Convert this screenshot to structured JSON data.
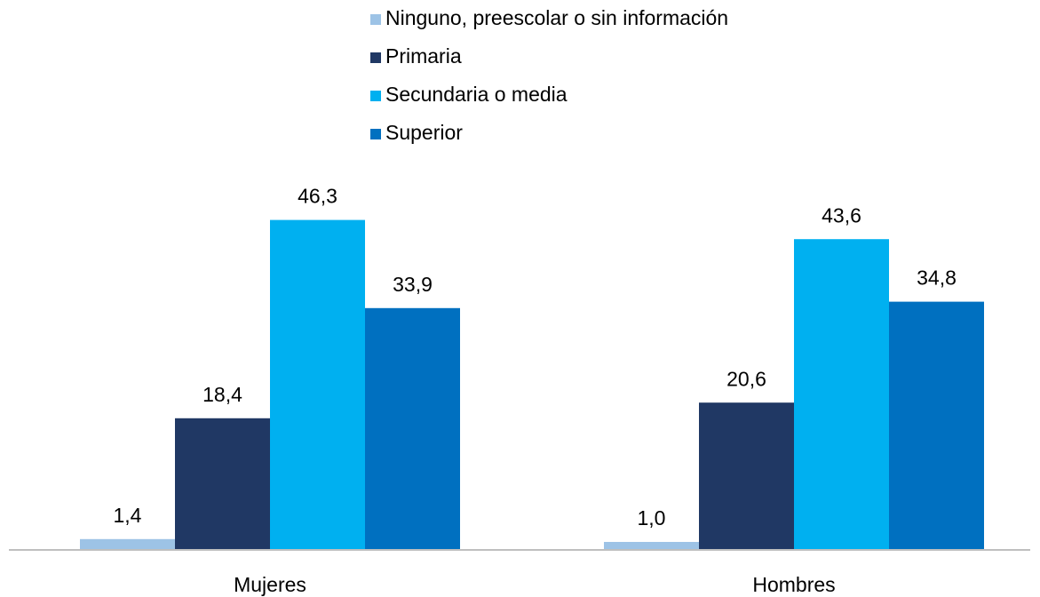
{
  "chart_data": {
    "type": "bar",
    "categories": [
      "Mujeres",
      "Hombres"
    ],
    "series": [
      {
        "name": "Ninguno, preescolar o sin información",
        "color": "#9dc3e6",
        "values": [
          1.4,
          1.0
        ],
        "value_labels": [
          "1,4",
          "1,0"
        ]
      },
      {
        "name": "Primaria",
        "color": "#203864",
        "values": [
          18.4,
          20.6
        ],
        "value_labels": [
          "18,4",
          "20,6"
        ]
      },
      {
        "name": "Secundaria o media",
        "color": "#00b0f0",
        "values": [
          46.3,
          43.6
        ],
        "value_labels": [
          "46,3",
          "43,6"
        ]
      },
      {
        "name": "Superior",
        "color": "#0070c0",
        "values": [
          33.9,
          34.8
        ],
        "value_labels": [
          "33,9",
          "34,8"
        ]
      }
    ]
  }
}
